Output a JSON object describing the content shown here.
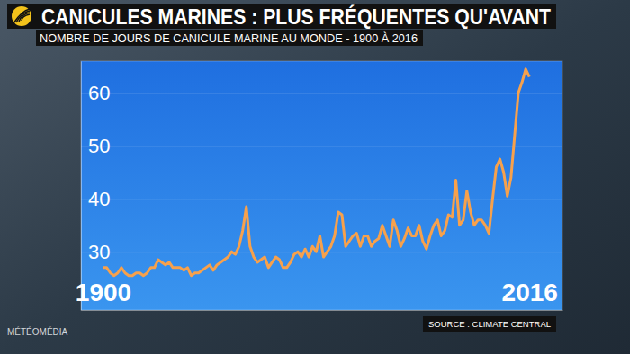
{
  "chart_data": {
    "type": "line",
    "title": "CANICULES MARINES : PLUS FRÉQUENTES QU'AVANT",
    "subtitle": "NOMBRE DE JOURS DE CANICULE MARINE AU MONDE - 1900 À 2016",
    "annotations": [
      "SOURCE : CLIMATE CENTRAL",
      "MÉTÉOMÉDIA"
    ],
    "x": [
      1900,
      1901,
      1902,
      1903,
      1904,
      1905,
      1906,
      1907,
      1908,
      1909,
      1910,
      1911,
      1912,
      1913,
      1914,
      1915,
      1916,
      1917,
      1918,
      1919,
      1920,
      1921,
      1922,
      1923,
      1924,
      1925,
      1926,
      1927,
      1928,
      1929,
      1930,
      1931,
      1932,
      1933,
      1934,
      1935,
      1936,
      1937,
      1938,
      1939,
      1940,
      1941,
      1942,
      1943,
      1944,
      1945,
      1946,
      1947,
      1948,
      1949,
      1950,
      1951,
      1952,
      1953,
      1954,
      1955,
      1956,
      1957,
      1958,
      1959,
      1960,
      1961,
      1962,
      1963,
      1964,
      1965,
      1966,
      1967,
      1968,
      1969,
      1970,
      1971,
      1972,
      1973,
      1974,
      1975,
      1976,
      1977,
      1978,
      1979,
      1980,
      1981,
      1982,
      1983,
      1984,
      1985,
      1986,
      1987,
      1988,
      1989,
      1990,
      1991,
      1992,
      1993,
      1994,
      1995,
      1996,
      1997,
      1998,
      1999,
      2000,
      2001,
      2002,
      2003,
      2004,
      2005,
      2006,
      2007,
      2008,
      2009,
      2010,
      2011,
      2012,
      2013,
      2014,
      2015,
      2016
    ],
    "values": [
      27,
      27,
      26,
      25.5,
      26,
      27,
      26,
      25.5,
      25.5,
      26,
      26,
      25.5,
      26,
      27,
      27,
      28.5,
      28,
      27.5,
      28,
      27,
      27,
      27,
      26.5,
      27,
      25.5,
      26,
      26,
      26.5,
      27,
      27.5,
      26.5,
      27.5,
      28,
      28.5,
      29,
      30,
      29.5,
      31,
      34,
      38.5,
      31,
      29,
      28,
      28.5,
      29,
      27,
      28,
      29,
      28.5,
      27,
      27,
      28,
      29.5,
      30,
      29,
      30.5,
      29,
      31,
      30,
      33,
      29,
      30,
      31,
      33,
      37.5,
      37,
      31,
      32,
      33,
      33.5,
      31,
      33,
      33,
      31,
      32,
      32.5,
      35,
      33,
      31,
      36,
      34,
      31,
      32.5,
      34.5,
      33,
      33,
      35,
      32,
      30.5,
      33,
      35,
      36,
      33,
      34,
      37,
      36.5,
      43.5,
      35,
      36,
      41.5,
      37.5,
      35,
      36,
      36,
      35,
      33.5,
      40,
      46,
      47.5,
      45,
      40.5,
      44,
      52,
      60,
      62,
      64.5,
      63
    ],
    "color": "#f7a14c",
    "xlim": [
      1894,
      2025
    ],
    "xticks": [
      1900,
      2016
    ],
    "ylim": [
      19,
      66
    ],
    "yticks": [
      30,
      40,
      50,
      60
    ],
    "grid": true
  }
}
